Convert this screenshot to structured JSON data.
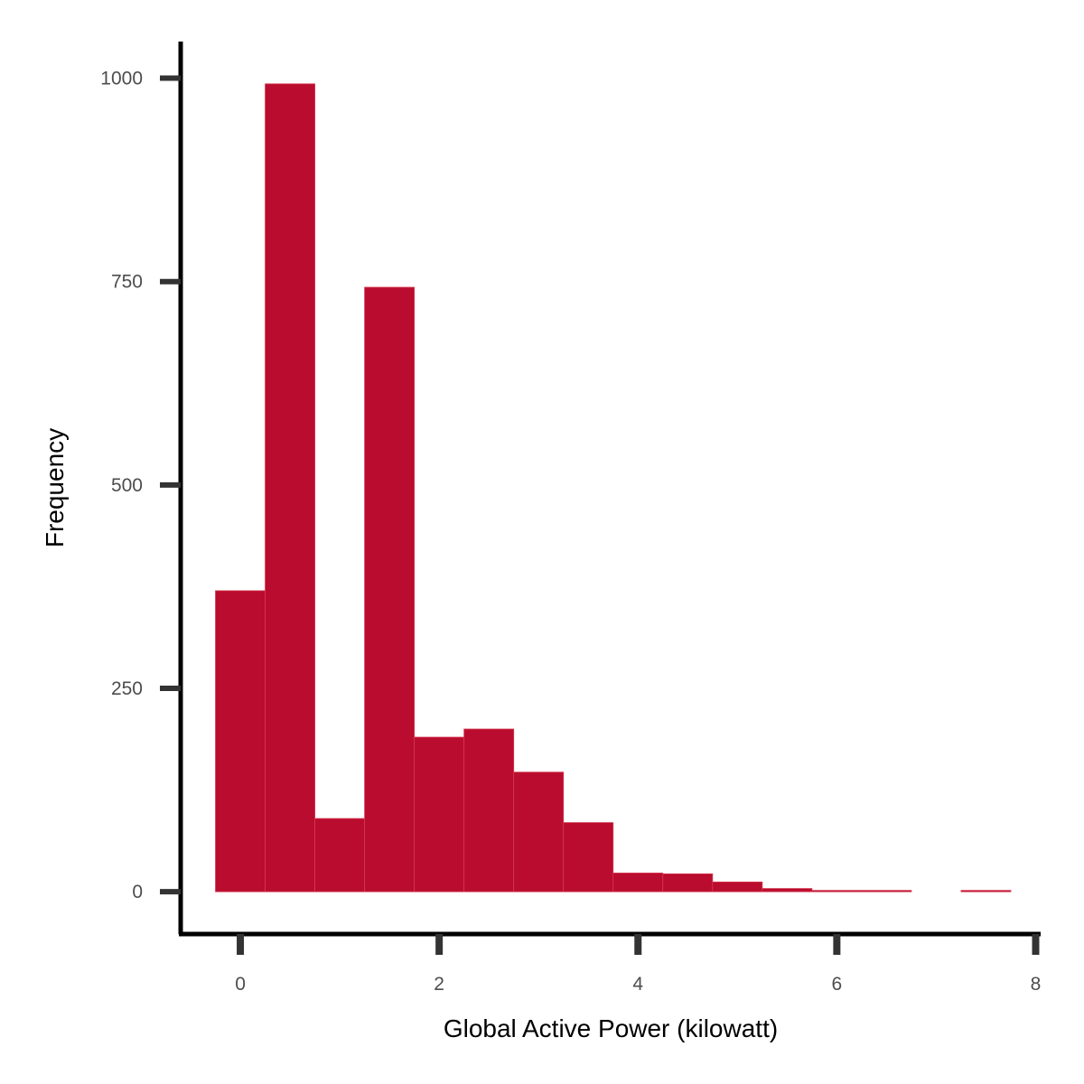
{
  "chart_data": {
    "type": "bar",
    "subtype": "histogram",
    "xlabel": "Global Active Power (kilowatt)",
    "ylabel": "Frequency",
    "bin_width": 0.5,
    "bins": [
      {
        "x0": -0.25,
        "x1": 0.25,
        "count": 370
      },
      {
        "x0": 0.25,
        "x1": 0.75,
        "count": 993
      },
      {
        "x0": 0.75,
        "x1": 1.25,
        "count": 90
      },
      {
        "x0": 1.25,
        "x1": 1.75,
        "count": 743
      },
      {
        "x0": 1.75,
        "x1": 2.25,
        "count": 190
      },
      {
        "x0": 2.25,
        "x1": 2.75,
        "count": 200
      },
      {
        "x0": 2.75,
        "x1": 3.25,
        "count": 147
      },
      {
        "x0": 3.25,
        "x1": 3.75,
        "count": 85
      },
      {
        "x0": 3.75,
        "x1": 4.25,
        "count": 23
      },
      {
        "x0": 4.25,
        "x1": 4.75,
        "count": 22
      },
      {
        "x0": 4.75,
        "x1": 5.25,
        "count": 12
      },
      {
        "x0": 5.25,
        "x1": 5.75,
        "count": 4
      },
      {
        "x0": 5.75,
        "x1": 6.25,
        "count": 1
      },
      {
        "x0": 6.25,
        "x1": 6.75,
        "count": 1
      },
      {
        "x0": 6.75,
        "x1": 7.25,
        "count": 0
      },
      {
        "x0": 7.25,
        "x1": 7.75,
        "count": 1
      }
    ],
    "xlim": [
      -0.6,
      8.05
    ],
    "ylim": [
      -52,
      1045
    ],
    "xticks": [
      0,
      2,
      4,
      6,
      8
    ],
    "yticks": [
      0,
      250,
      500,
      750,
      1000
    ],
    "grid": false,
    "legend": "none",
    "colors": {
      "bar_fill": "#ba0c2f",
      "bar_edge": "#d4384f",
      "axis_line": "#000000",
      "tick_mark": "#333333",
      "tick_label": "#4d4d4d"
    }
  }
}
